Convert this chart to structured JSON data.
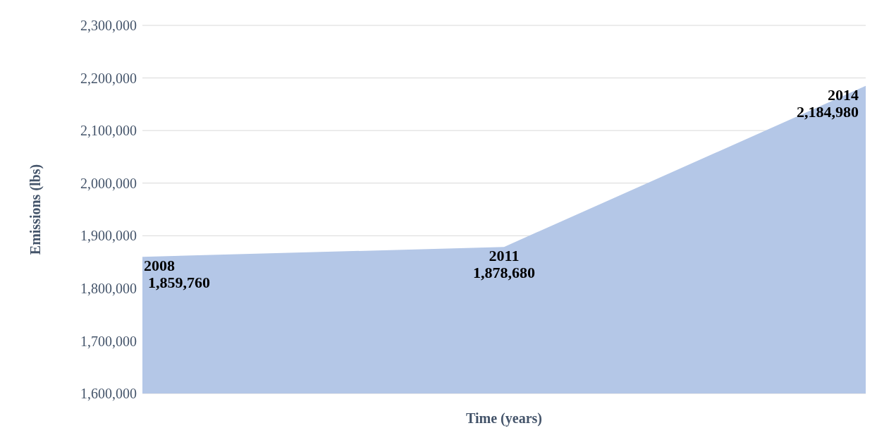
{
  "chart_data": {
    "type": "area",
    "xlabel": "Time (years)",
    "ylabel": "Emissions (lbs)",
    "categories": [
      "2008",
      "2011",
      "2014"
    ],
    "values": [
      1859760,
      1878680,
      2184980
    ],
    "value_labels": [
      "1,859,760",
      "1,878,680",
      "2,184,980"
    ],
    "color": "#b4c7e7",
    "ylim": [
      1600000,
      2300000
    ],
    "yticks": [
      {
        "value": 1600000,
        "label": "1,600,000"
      },
      {
        "value": 1700000,
        "label": "1,700,000"
      },
      {
        "value": 1800000,
        "label": "1,800,000"
      },
      {
        "value": 1900000,
        "label": "1,900,000"
      },
      {
        "value": 2000000,
        "label": "2,000,000"
      },
      {
        "value": 2100000,
        "label": "2,100,000"
      },
      {
        "value": 2200000,
        "label": "2,200,000"
      },
      {
        "value": 2300000,
        "label": "2,300,000"
      }
    ],
    "grid": "y",
    "tick_labels": "y"
  }
}
